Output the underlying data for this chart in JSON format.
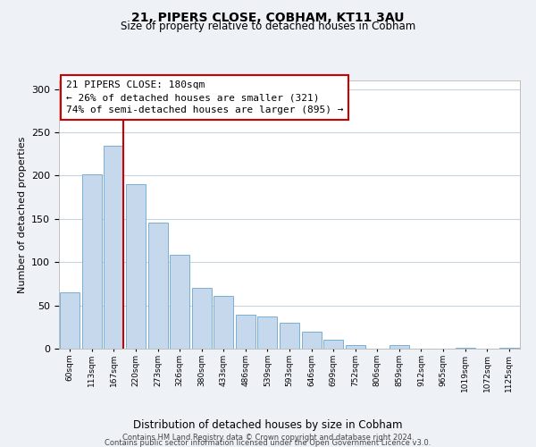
{
  "title": "21, PIPERS CLOSE, COBHAM, KT11 3AU",
  "subtitle": "Size of property relative to detached houses in Cobham",
  "xlabel": "Distribution of detached houses by size in Cobham",
  "ylabel": "Number of detached properties",
  "bar_labels": [
    "60sqm",
    "113sqm",
    "167sqm",
    "220sqm",
    "273sqm",
    "326sqm",
    "380sqm",
    "433sqm",
    "486sqm",
    "539sqm",
    "593sqm",
    "646sqm",
    "699sqm",
    "752sqm",
    "806sqm",
    "859sqm",
    "912sqm",
    "965sqm",
    "1019sqm",
    "1072sqm",
    "1125sqm"
  ],
  "bar_values": [
    65,
    202,
    235,
    190,
    146,
    108,
    70,
    61,
    39,
    37,
    30,
    20,
    10,
    4,
    0,
    4,
    0,
    0,
    1,
    0,
    1
  ],
  "bar_color": "#c6d9ec",
  "bar_edge_color": "#7aafd4",
  "vline_index": 2,
  "vline_color": "#cc0000",
  "ylim": [
    0,
    310
  ],
  "yticks": [
    0,
    50,
    100,
    150,
    200,
    250,
    300
  ],
  "annotation_title": "21 PIPERS CLOSE: 180sqm",
  "annotation_line1": "← 26% of detached houses are smaller (321)",
  "annotation_line2": "74% of semi-detached houses are larger (895) →",
  "footer_line1": "Contains HM Land Registry data © Crown copyright and database right 2024.",
  "footer_line2": "Contains public sector information licensed under the Open Government Licence v3.0.",
  "background_color": "#eef2f7",
  "plot_bg_color": "#ffffff",
  "grid_color": "#c8d4e0"
}
